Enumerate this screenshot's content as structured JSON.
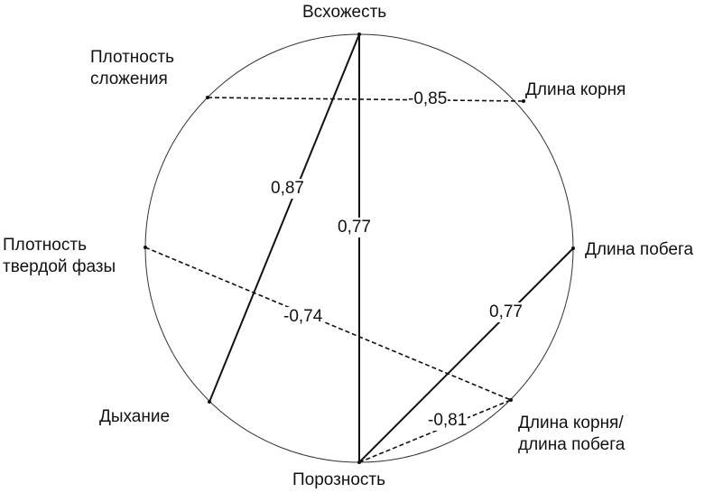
{
  "nodes": [
    {
      "id": "vskhozhest",
      "label": [
        "Всхожесть"
      ]
    },
    {
      "id": "plotnost_slozheniya",
      "label": [
        "Плотность",
        "сложения"
      ]
    },
    {
      "id": "dlina_kornya",
      "label": [
        "Длина корня"
      ]
    },
    {
      "id": "plotnost_tverdoy",
      "label": [
        "Плотность",
        "твердой фазы"
      ]
    },
    {
      "id": "dlina_pobega",
      "label": [
        "Длина побега"
      ]
    },
    {
      "id": "dykhanie",
      "label": [
        "Дыхание"
      ]
    },
    {
      "id": "koren_pobeg",
      "label": [
        "Длина корня/",
        "длина побега"
      ]
    },
    {
      "id": "poroznost",
      "label": [
        "Порозность"
      ]
    }
  ],
  "edges": [
    {
      "from": "vskhozhest",
      "to": "dykhanie",
      "value": "0,87",
      "style": "solid"
    },
    {
      "from": "vskhozhest",
      "to": "poroznost",
      "value": "0,77",
      "style": "solid"
    },
    {
      "from": "plotnost_slozheniya",
      "to": "dlina_kornya",
      "value": "-0,85",
      "style": "dashed"
    },
    {
      "from": "plotnost_tverdoy",
      "to": "koren_pobeg",
      "value": "-0,74",
      "style": "dashed"
    },
    {
      "from": "poroznost",
      "to": "dlina_pobega",
      "value": "0,77",
      "style": "solid"
    },
    {
      "from": "poroznost",
      "to": "koren_pobeg",
      "value": "-0,81",
      "style": "dashed"
    }
  ],
  "colors": {
    "line": "#111111",
    "background": "#ffffff"
  }
}
